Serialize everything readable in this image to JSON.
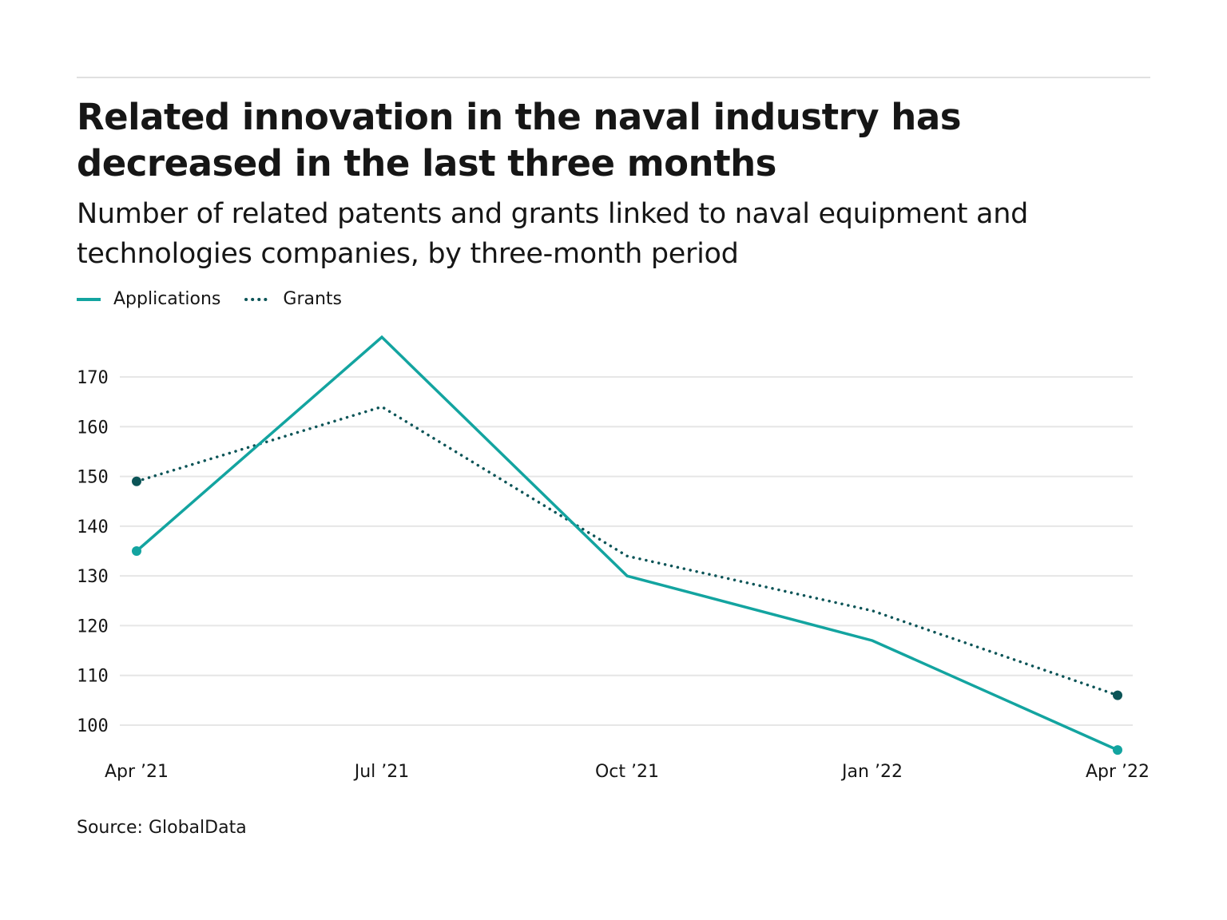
{
  "chart_data": {
    "type": "line",
    "title": "Related innovation in the naval industry has decreased in the last three months",
    "subtitle": "Number of related patents and grants linked to naval equipment and technologies companies, by three-month period",
    "categories": [
      "Apr ’21",
      "Jul ’21",
      "Oct ’21",
      "Jan ’22",
      "Apr ’22"
    ],
    "series": [
      {
        "name": "Applications",
        "values": [
          135,
          178,
          130,
          117,
          95
        ],
        "color": "#13a4a0",
        "style": "solid"
      },
      {
        "name": "Grants",
        "values": [
          149,
          164,
          134,
          123,
          106
        ],
        "color": "#0b5457",
        "style": "dotted"
      }
    ],
    "yticks": [
      100,
      110,
      120,
      130,
      140,
      150,
      160,
      170
    ],
    "ylim": [
      95,
      178
    ],
    "grid": true,
    "legend": "top-left",
    "source": "Source: GlobalData"
  }
}
